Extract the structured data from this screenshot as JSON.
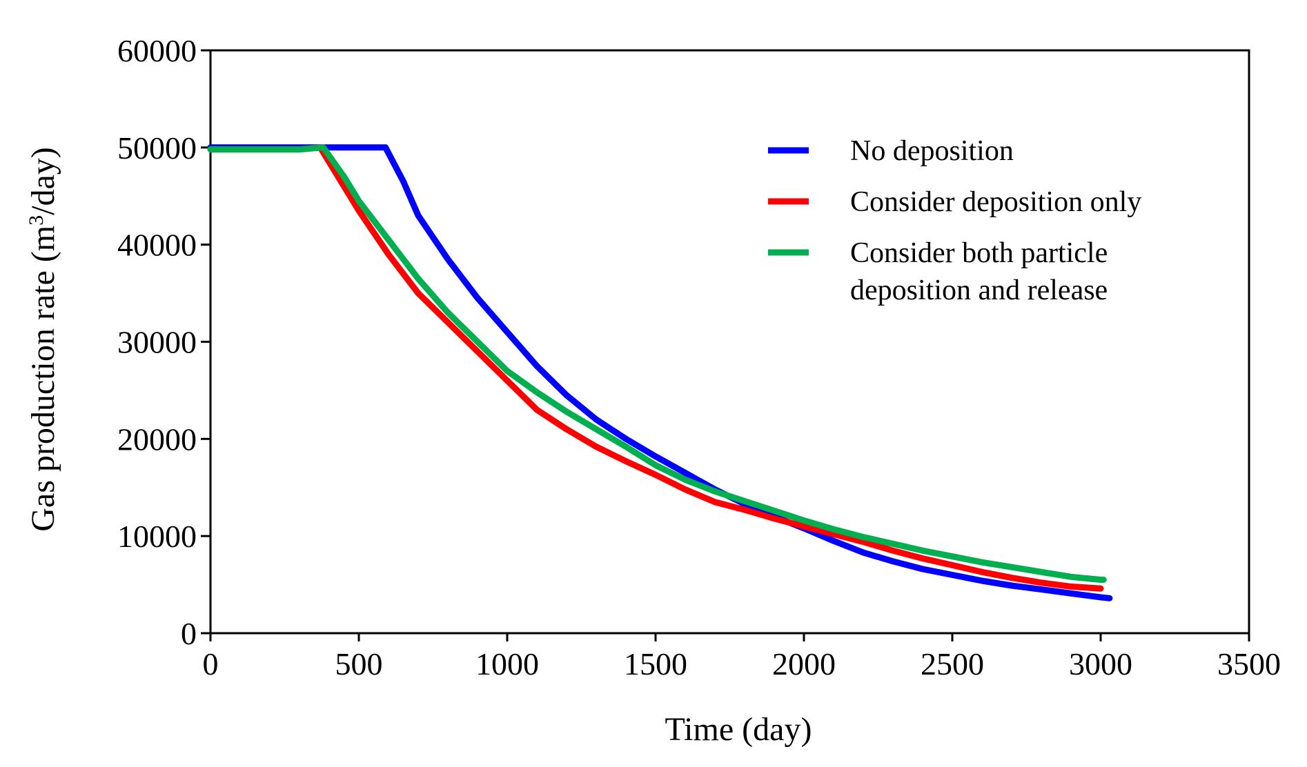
{
  "chart_data": {
    "type": "line",
    "title": "",
    "xlabel": "Time (day)",
    "ylabel": {
      "prefix": "Gas production rate (m",
      "superscript": "3",
      "suffix": "/day)"
    },
    "xlim": [
      0,
      3500
    ],
    "ylim": [
      0,
      60000
    ],
    "xticks": [
      0,
      500,
      1000,
      1500,
      2000,
      2500,
      3000,
      3500
    ],
    "xtick_labels": [
      "0",
      "500",
      "1000",
      "1500",
      "2000",
      "2500",
      "3000",
      "3500"
    ],
    "yticks": [
      0,
      10000,
      20000,
      30000,
      40000,
      50000,
      60000
    ],
    "ytick_labels": [
      "0",
      "10000",
      "20000",
      "30000",
      "40000",
      "50000",
      "60000"
    ],
    "grid": false,
    "legend_position": "top-right",
    "series": [
      {
        "name": "No deposition",
        "legend_lines": [
          "No deposition"
        ],
        "color": "#0000ff",
        "points": [
          [
            0,
            50000
          ],
          [
            100,
            50000
          ],
          [
            200,
            50000
          ],
          [
            300,
            50000
          ],
          [
            400,
            50000
          ],
          [
            500,
            50000
          ],
          [
            590,
            50000
          ],
          [
            650,
            46500
          ],
          [
            700,
            43000
          ],
          [
            800,
            38500
          ],
          [
            900,
            34500
          ],
          [
            1000,
            31000
          ],
          [
            1100,
            27500
          ],
          [
            1200,
            24500
          ],
          [
            1300,
            22000
          ],
          [
            1400,
            20000
          ],
          [
            1500,
            18200
          ],
          [
            1600,
            16500
          ],
          [
            1700,
            14800
          ],
          [
            1800,
            13300
          ],
          [
            1900,
            12000
          ],
          [
            2000,
            10800
          ],
          [
            2100,
            9500
          ],
          [
            2200,
            8300
          ],
          [
            2300,
            7400
          ],
          [
            2400,
            6600
          ],
          [
            2500,
            6000
          ],
          [
            2600,
            5400
          ],
          [
            2700,
            4900
          ],
          [
            2800,
            4500
          ],
          [
            2900,
            4100
          ],
          [
            3000,
            3700
          ],
          [
            3030,
            3600
          ]
        ]
      },
      {
        "name": "Consider deposition only",
        "legend_lines": [
          "Consider deposition only"
        ],
        "color": "#ff0000",
        "points": [
          [
            0,
            49800
          ],
          [
            100,
            49800
          ],
          [
            200,
            49800
          ],
          [
            300,
            49800
          ],
          [
            370,
            50000
          ],
          [
            450,
            46000
          ],
          [
            500,
            43500
          ],
          [
            600,
            39000
          ],
          [
            700,
            35000
          ],
          [
            800,
            32000
          ],
          [
            900,
            29000
          ],
          [
            1000,
            26000
          ],
          [
            1100,
            23000
          ],
          [
            1200,
            21000
          ],
          [
            1300,
            19200
          ],
          [
            1400,
            17700
          ],
          [
            1500,
            16300
          ],
          [
            1600,
            14800
          ],
          [
            1700,
            13500
          ],
          [
            1800,
            12700
          ],
          [
            1900,
            11800
          ],
          [
            2000,
            11000
          ],
          [
            2100,
            10200
          ],
          [
            2200,
            9400
          ],
          [
            2300,
            8500
          ],
          [
            2400,
            7700
          ],
          [
            2500,
            7000
          ],
          [
            2600,
            6300
          ],
          [
            2700,
            5700
          ],
          [
            2800,
            5200
          ],
          [
            2900,
            4800
          ],
          [
            3000,
            4600
          ]
        ]
      },
      {
        "name": "Consider both particle deposition and release",
        "legend_lines": [
          "Consider both particle",
          "deposition and release"
        ],
        "color": "#00b050",
        "points": [
          [
            0,
            49800
          ],
          [
            100,
            49800
          ],
          [
            200,
            49800
          ],
          [
            300,
            49800
          ],
          [
            380,
            50000
          ],
          [
            450,
            47000
          ],
          [
            500,
            44500
          ],
          [
            600,
            40500
          ],
          [
            700,
            36500
          ],
          [
            800,
            33000
          ],
          [
            900,
            30000
          ],
          [
            1000,
            27000
          ],
          [
            1100,
            24800
          ],
          [
            1200,
            22800
          ],
          [
            1300,
            21000
          ],
          [
            1400,
            19200
          ],
          [
            1500,
            17300
          ],
          [
            1600,
            15800
          ],
          [
            1700,
            14600
          ],
          [
            1800,
            13600
          ],
          [
            1900,
            12600
          ],
          [
            2000,
            11600
          ],
          [
            2100,
            10700
          ],
          [
            2200,
            9900
          ],
          [
            2300,
            9200
          ],
          [
            2400,
            8500
          ],
          [
            2500,
            7900
          ],
          [
            2600,
            7300
          ],
          [
            2700,
            6800
          ],
          [
            2800,
            6300
          ],
          [
            2900,
            5800
          ],
          [
            3000,
            5500
          ],
          [
            3010,
            5500
          ]
        ]
      }
    ]
  }
}
